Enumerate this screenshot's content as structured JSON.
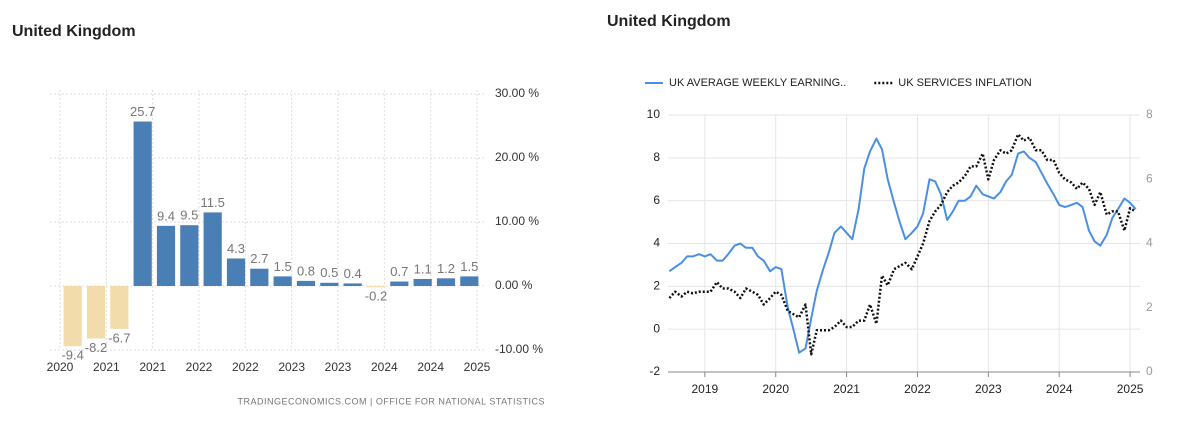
{
  "chart_data": [
    {
      "type": "bar",
      "title": "United Kingdom",
      "values": [
        -9.4,
        -8.2,
        -6.7,
        25.7,
        9.4,
        9.5,
        11.5,
        4.3,
        2.7,
        1.5,
        0.8,
        0.5,
        0.4,
        -0.2,
        0.7,
        1.1,
        1.2,
        1.5
      ],
      "color": "#4a7fb5",
      "negative_color": "#f3dcac",
      "x_labels": [
        "2020",
        "2021",
        "2021",
        "2022",
        "2022",
        "2023",
        "2023",
        "2024",
        "2024",
        "2025"
      ],
      "ylim": [
        -10,
        30
      ],
      "yticks": [
        {
          "value": 30,
          "label": "30.00 %"
        },
        {
          "value": 20,
          "label": "20.00 %"
        },
        {
          "value": 10,
          "label": "10.00 %"
        },
        {
          "value": 0,
          "label": "0.00 %"
        },
        {
          "value": -10,
          "label": "-10.00 %"
        }
      ],
      "grid": true,
      "source": "TRADINGECONOMICS.COM  |  OFFICE FOR NATIONAL STATISTICS"
    },
    {
      "type": "line",
      "title": "United Kingdom",
      "x": [
        2018.5,
        2018.58,
        2018.67,
        2018.75,
        2018.83,
        2018.92,
        2019.0,
        2019.08,
        2019.17,
        2019.25,
        2019.33,
        2019.42,
        2019.5,
        2019.58,
        2019.67,
        2019.75,
        2019.83,
        2019.92,
        2020.0,
        2020.08,
        2020.17,
        2020.25,
        2020.33,
        2020.42,
        2020.5,
        2020.58,
        2020.67,
        2020.75,
        2020.83,
        2020.92,
        2021.0,
        2021.08,
        2021.17,
        2021.25,
        2021.33,
        2021.42,
        2021.5,
        2021.58,
        2021.67,
        2021.75,
        2021.83,
        2021.92,
        2022.0,
        2022.08,
        2022.17,
        2022.25,
        2022.33,
        2022.42,
        2022.5,
        2022.58,
        2022.67,
        2022.75,
        2022.83,
        2022.92,
        2023.0,
        2023.08,
        2023.17,
        2023.25,
        2023.33,
        2023.42,
        2023.5,
        2023.58,
        2023.67,
        2023.75,
        2023.83,
        2023.92,
        2024.0,
        2024.08,
        2024.17,
        2024.25,
        2024.33,
        2024.42,
        2024.5,
        2024.58,
        2024.67,
        2024.75,
        2024.83,
        2024.92,
        2025.0,
        2025.08
      ],
      "series": [
        {
          "name": "UK AVERAGE WEEKLY EARNING..",
          "color": "#4a90e2",
          "style": "solid",
          "values": [
            2.7,
            2.9,
            3.1,
            3.4,
            3.4,
            3.5,
            3.4,
            3.5,
            3.2,
            3.2,
            3.5,
            3.9,
            4.0,
            3.8,
            3.8,
            3.4,
            3.2,
            2.7,
            2.9,
            2.8,
            1.0,
            0.0,
            -1.1,
            -0.9,
            0.5,
            1.8,
            2.8,
            3.6,
            4.5,
            4.8,
            4.5,
            4.2,
            5.6,
            7.5,
            8.3,
            8.9,
            8.4,
            7.0,
            5.9,
            5.0,
            4.2,
            4.5,
            4.8,
            5.4,
            7.0,
            6.9,
            6.3,
            5.1,
            5.5,
            6.0,
            6.0,
            6.2,
            6.7,
            6.3,
            6.2,
            6.1,
            6.4,
            6.9,
            7.2,
            8.2,
            8.3,
            8.0,
            7.8,
            7.3,
            6.8,
            6.3,
            5.8,
            5.7,
            5.8,
            5.9,
            5.7,
            4.6,
            4.1,
            3.9,
            4.4,
            5.2,
            5.6,
            6.1,
            5.9,
            5.6
          ]
        },
        {
          "name": "UK SERVICES INFLATION",
          "color": "#111111",
          "style": "dotted",
          "axis": "y2",
          "values": [
            2.3,
            2.5,
            2.35,
            2.5,
            2.45,
            2.5,
            2.5,
            2.5,
            2.8,
            2.6,
            2.6,
            2.5,
            2.3,
            2.6,
            2.5,
            2.4,
            2.1,
            2.3,
            2.5,
            2.4,
            1.9,
            1.8,
            1.7,
            2.1,
            0.55,
            1.3,
            1.3,
            1.3,
            1.4,
            1.6,
            1.4,
            1.4,
            1.6,
            1.6,
            2.1,
            1.5,
            3.0,
            2.7,
            3.2,
            3.3,
            3.4,
            3.2,
            3.6,
            4.0,
            4.7,
            5.0,
            5.2,
            5.6,
            5.8,
            5.9,
            6.1,
            6.4,
            6.4,
            6.8,
            6.0,
            6.6,
            6.9,
            6.8,
            6.9,
            7.4,
            7.2,
            7.3,
            6.9,
            6.9,
            6.6,
            6.6,
            6.2,
            6.0,
            5.9,
            5.7,
            5.9,
            5.7,
            5.2,
            5.6,
            4.9,
            5.0,
            5.0,
            4.4,
            5.1,
            5.0
          ]
        }
      ],
      "xlim": [
        2018.48,
        2025.14
      ],
      "xticks": [
        2019,
        2020,
        2021,
        2022,
        2023,
        2024,
        2025
      ],
      "ylim": [
        -2,
        10
      ],
      "yticks": [
        -2,
        0,
        2,
        4,
        6,
        8,
        10
      ],
      "y2lim": [
        0,
        8
      ],
      "y2ticks": [
        0,
        2,
        4,
        6,
        8
      ],
      "grid": true,
      "legend": "top-left"
    }
  ]
}
